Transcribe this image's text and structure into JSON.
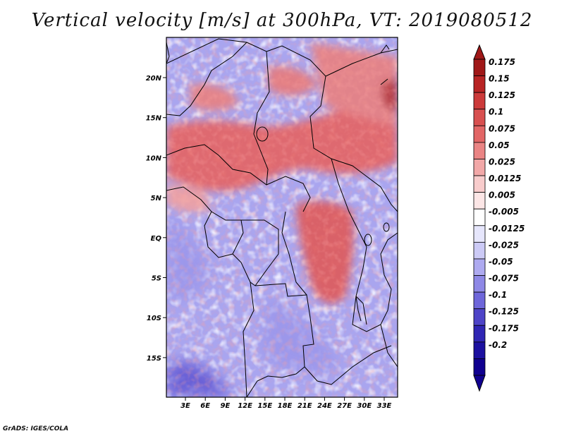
{
  "title": "Vertical velocity [m/s] at 300hPa, VT: 2019080512",
  "credit": "GrADS: IGES/COLA",
  "map": {
    "lon_ticks": [
      "3E",
      "6E",
      "9E",
      "12E",
      "15E",
      "18E",
      "21E",
      "24E",
      "27E",
      "30E",
      "33E"
    ],
    "lat_ticks": [
      "20N",
      "15N",
      "10N",
      "5N",
      "EQ",
      "5S",
      "10S",
      "15S"
    ]
  },
  "colorbar": {
    "labels": [
      "0.175",
      "0.15",
      "0.125",
      "0.1",
      "0.075",
      "0.05",
      "0.025",
      "0.0125",
      "0.005",
      "-0.005",
      "-0.0125",
      "-0.025",
      "-0.05",
      "-0.075",
      "-0.1",
      "-0.125",
      "-0.175",
      "-0.2"
    ],
    "colors": [
      "#a01818",
      "#b82424",
      "#cc3a3a",
      "#d85050",
      "#e26666",
      "#ea8484",
      "#f2a8a8",
      "#f8cccc",
      "#fce6e6",
      "#ffffff",
      "#e6e6fc",
      "#cccaf6",
      "#aeaaf0",
      "#8e88e6",
      "#6e66da",
      "#4e44c8",
      "#3026b4",
      "#1c10a0",
      "#100090"
    ],
    "top_color": "#a01818",
    "bottom_color": "#100090"
  },
  "palette": {
    "background_blue": "#a8a4ee",
    "red": "#e05a5a",
    "white": "#ffffff",
    "boundary": "#000000"
  }
}
